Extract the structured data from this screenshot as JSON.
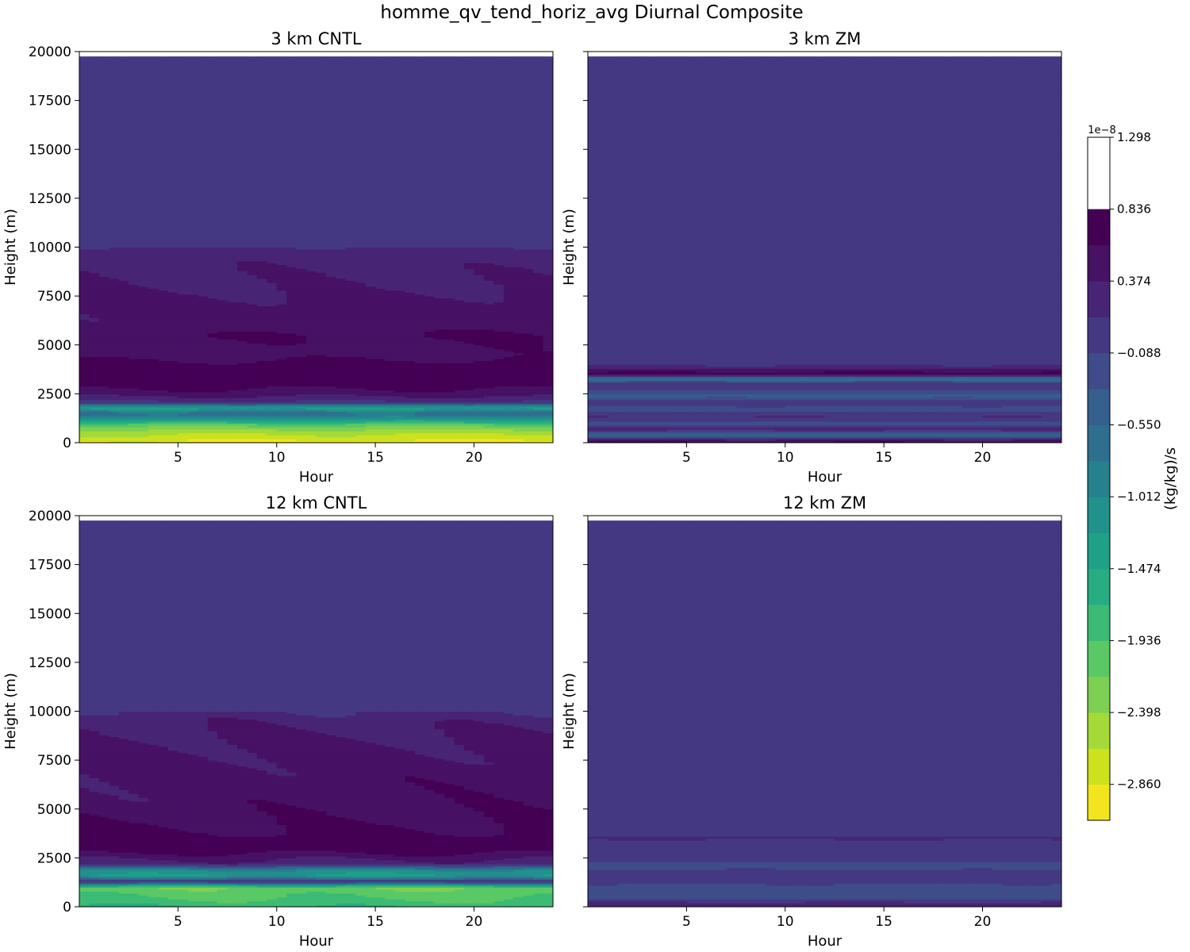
{
  "figure": {
    "suptitle": "homme_qv_tend_horiz_avg Diurnal Composite"
  },
  "chart_data": {
    "type": "heatmap",
    "title": "homme_qv_tend_horiz_avg Diurnal Composite",
    "xlabel": "Hour",
    "ylabel": "Height (m)",
    "xlim": [
      0,
      24
    ],
    "ylim": [
      0,
      20000
    ],
    "data_top_height": 19750,
    "xticks": [
      5,
      10,
      15,
      20
    ],
    "yticks": [
      0,
      2500,
      5000,
      7500,
      10000,
      12500,
      15000,
      17500,
      20000
    ],
    "colorbar": {
      "label": "(kg/kg)/s",
      "exponent_label": "1e−8",
      "levels": [
        -3.091,
        -2.86,
        -2.629,
        -2.398,
        -2.167,
        -1.936,
        -1.705,
        -1.474,
        -1.243,
        -1.012,
        -0.781,
        -0.55,
        -0.319,
        -0.088,
        0.143,
        0.374,
        0.605,
        0.836,
        1.067,
        1.298
      ],
      "tick_labels": [
        "1.298",
        "0.836",
        "0.374",
        "−0.088",
        "−0.550",
        "−1.012",
        "−1.474",
        "−1.936",
        "−2.398",
        "−2.860"
      ],
      "tick_values": [
        1.298,
        0.836,
        0.374,
        -0.088,
        -0.55,
        -1.012,
        -1.474,
        -1.936,
        -2.398,
        -2.86
      ],
      "colors": [
        "#f2e51d",
        "#cde11d",
        "#a3da37",
        "#7dd052",
        "#5ac864",
        "#3cbb75",
        "#26ad81",
        "#1fa187",
        "#21918c",
        "#27808e",
        "#2e6f8e",
        "#355f8d",
        "#3e4c8a",
        "#453882",
        "#482475",
        "#471164",
        "#440154"
      ]
    },
    "panels": [
      {
        "title": "3 km CNTL",
        "profile": [
          {
            "height": 0,
            "value": -2.95
          },
          {
            "height": 300,
            "value": -2.7
          },
          {
            "height": 600,
            "value": -2.45
          },
          {
            "height": 900,
            "value": -2.05
          },
          {
            "height": 1200,
            "value": -1.2
          },
          {
            "height": 1500,
            "value": -0.55
          },
          {
            "height": 1800,
            "value": -1.3
          },
          {
            "height": 2100,
            "value": 0.2
          },
          {
            "height": 2500,
            "value": 0.55
          },
          {
            "height": 3000,
            "value": 0.8
          },
          {
            "height": 3500,
            "value": 0.95
          },
          {
            "height": 4000,
            "value": 0.75
          },
          {
            "height": 4500,
            "value": 0.55
          },
          {
            "height": 5000,
            "value": 0.55
          },
          {
            "height": 5500,
            "value": 0.6
          },
          {
            "height": 6000,
            "value": 0.45
          },
          {
            "height": 7000,
            "value": 0.4
          },
          {
            "height": 8000,
            "value": 0.28
          },
          {
            "height": 9000,
            "value": 0.25
          },
          {
            "height": 9800,
            "value": 0.2
          },
          {
            "height": 10200,
            "value": 0.05
          },
          {
            "height": 12000,
            "value": 0.0
          },
          {
            "height": 19750,
            "value": 0.0
          }
        ],
        "diurnal_amplitude": 0.15
      },
      {
        "title": "3 km ZM",
        "profile": [
          {
            "height": 0,
            "value": 0.7
          },
          {
            "height": 150,
            "value": 0.4
          },
          {
            "height": 400,
            "value": -0.55
          },
          {
            "height": 700,
            "value": 0.3
          },
          {
            "height": 1000,
            "value": -0.25
          },
          {
            "height": 1300,
            "value": 0.2
          },
          {
            "height": 1700,
            "value": -0.2
          },
          {
            "height": 2100,
            "value": 0.1
          },
          {
            "height": 2400,
            "value": -0.4
          },
          {
            "height": 2700,
            "value": -0.1
          },
          {
            "height": 3000,
            "value": 0.1
          },
          {
            "height": 3300,
            "value": -0.7
          },
          {
            "height": 3550,
            "value": 0.8
          },
          {
            "height": 3800,
            "value": 0.35
          },
          {
            "height": 4100,
            "value": 0.0
          },
          {
            "height": 19750,
            "value": 0.0
          }
        ],
        "diurnal_amplitude": 0.05
      },
      {
        "title": "12 km CNTL",
        "profile": [
          {
            "height": 0,
            "value": -1.7
          },
          {
            "height": 500,
            "value": -1.9
          },
          {
            "height": 1000,
            "value": -2.05
          },
          {
            "height": 1300,
            "value": 0.2
          },
          {
            "height": 1600,
            "value": -1.2
          },
          {
            "height": 1900,
            "value": -0.9
          },
          {
            "height": 2200,
            "value": 0.35
          },
          {
            "height": 2600,
            "value": 0.6
          },
          {
            "height": 3200,
            "value": 1.0
          },
          {
            "height": 3700,
            "value": 0.75
          },
          {
            "height": 4500,
            "value": 0.6
          },
          {
            "height": 5500,
            "value": 0.5
          },
          {
            "height": 7000,
            "value": 0.4
          },
          {
            "height": 8500,
            "value": 0.3
          },
          {
            "height": 9500,
            "value": 0.2
          },
          {
            "height": 10400,
            "value": 0.05
          },
          {
            "height": 12000,
            "value": 0.0
          },
          {
            "height": 19750,
            "value": 0.0
          }
        ],
        "diurnal_amplitude": 0.22
      },
      {
        "title": "12 km ZM",
        "profile": [
          {
            "height": 0,
            "value": 0.4
          },
          {
            "height": 300,
            "value": 0.1
          },
          {
            "height": 600,
            "value": -0.3
          },
          {
            "height": 900,
            "value": -0.15
          },
          {
            "height": 1300,
            "value": -0.05
          },
          {
            "height": 1700,
            "value": 0.1
          },
          {
            "height": 2100,
            "value": -0.2
          },
          {
            "height": 2500,
            "value": 0.05
          },
          {
            "height": 2900,
            "value": 0.15
          },
          {
            "height": 3300,
            "value": -0.1
          },
          {
            "height": 3500,
            "value": 0.25
          },
          {
            "height": 3800,
            "value": 0.0
          },
          {
            "height": 19750,
            "value": 0.0
          }
        ],
        "diurnal_amplitude": 0.05
      }
    ]
  }
}
